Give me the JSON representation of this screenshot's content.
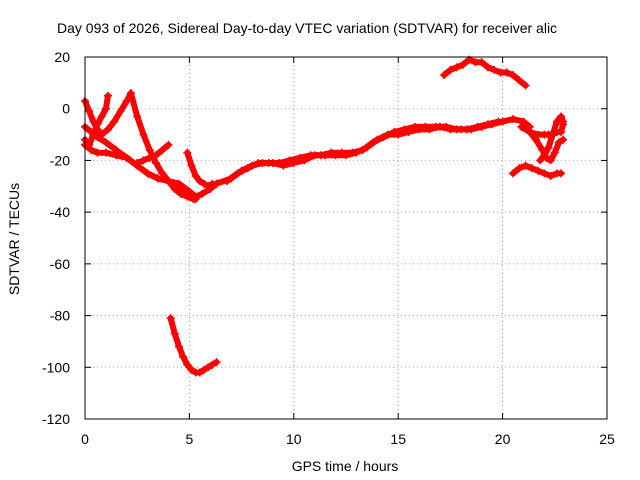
{
  "chart_data": {
    "type": "scatter",
    "title": "Day 093 of 2026, Sidereal Day-to-day VTEC variation (SDTVAR) for receiver alic",
    "xlabel": "GPS time / hours",
    "ylabel": "SDTVAR / TECUs",
    "xlim": [
      0,
      25
    ],
    "ylim": [
      -120,
      20
    ],
    "x_ticks": [
      0,
      5,
      10,
      15,
      20,
      25
    ],
    "y_ticks": [
      -120,
      -100,
      -80,
      -60,
      -40,
      -20,
      0,
      20
    ],
    "x_tick_labels": [
      "0",
      "5",
      "10",
      "15",
      "20",
      "25"
    ],
    "y_tick_labels": [
      "-120",
      "-100",
      "-80",
      "-60",
      "-40",
      "-20",
      "0",
      "20"
    ],
    "grid": true,
    "marker": "plus",
    "color": "#ff0000",
    "series": [
      {
        "x": [
          0.0,
          0.3,
          0.6,
          1.0,
          1.5,
          2.0,
          2.5,
          3.0,
          3.5,
          4.0,
          4.5,
          5.0,
          5.3,
          5.6,
          6.0,
          6.3
        ],
        "y": [
          -14,
          -16,
          -17,
          -17,
          -18,
          -19,
          -22,
          -25,
          -27,
          -28,
          -29,
          -32,
          -34,
          -33,
          -31,
          -29
        ]
      },
      {
        "x": [
          0.0,
          0.3,
          0.6,
          1.0,
          1.5,
          2.0,
          2.5,
          3.0,
          3.5,
          4.0,
          4.5,
          5.0,
          5.3
        ],
        "y": [
          -7,
          -9,
          -11,
          -13,
          -16,
          -19,
          -22,
          -25,
          -27,
          -28,
          -30,
          -33,
          -35
        ]
      },
      {
        "x": [
          0.0,
          0.2,
          0.4,
          0.6,
          0.8,
          1.0,
          1.1
        ],
        "y": [
          -12,
          -14,
          -10,
          -6,
          -3,
          0,
          5
        ]
      },
      {
        "x": [
          0.0,
          0.2,
          0.4,
          0.6,
          0.8,
          1.1,
          1.4,
          1.7,
          2.0,
          2.2
        ],
        "y": [
          3,
          -1,
          -5,
          -8,
          -10,
          -8,
          -5,
          -1,
          3,
          6
        ]
      },
      {
        "x": [
          2.2,
          2.5,
          2.8,
          3.1,
          3.4,
          3.7,
          4.0,
          4.3,
          4.6,
          4.9,
          5.2
        ],
        "y": [
          6,
          -3,
          -10,
          -16,
          -21,
          -25,
          -28,
          -31,
          -33,
          -34,
          -35
        ]
      },
      {
        "x": [
          2.5,
          2.8,
          3.1,
          3.4,
          3.7,
          4.0
        ],
        "y": [
          -21,
          -20,
          -19,
          -18,
          -16,
          -14
        ]
      },
      {
        "x": [
          4.9,
          5.1,
          5.3,
          5.5,
          5.7,
          5.9,
          6.1
        ],
        "y": [
          -17,
          -22,
          -26,
          -28,
          -29,
          -30,
          -29
        ]
      },
      {
        "x": [
          6.3,
          7.0,
          7.5,
          8.0,
          8.5,
          9.0,
          9.5,
          10.0,
          10.5,
          11.0,
          11.5,
          12.0,
          12.5,
          13.0,
          13.5,
          14.0,
          14.5,
          15.0,
          15.5,
          16.0,
          16.5,
          17.0,
          17.5,
          18.0,
          18.5,
          19.0,
          19.5,
          20.0,
          20.5,
          21.0,
          21.3
        ],
        "y": [
          -29,
          -27,
          -24,
          -22,
          -21,
          -21,
          -22,
          -21,
          -20,
          -18,
          -18,
          -18,
          -18,
          -17,
          -15,
          -12,
          -10,
          -10,
          -9,
          -8,
          -8,
          -7,
          -8,
          -8,
          -8,
          -7,
          -6,
          -5,
          -4,
          -5,
          -7
        ]
      },
      {
        "x": [
          6.8,
          7.3,
          7.8,
          8.3,
          8.8,
          9.3,
          9.8,
          10.3,
          10.8,
          11.3,
          11.8,
          12.3,
          12.8,
          13.3,
          13.8,
          14.3,
          14.8,
          15.3,
          15.8,
          16.3,
          16.8,
          17.3,
          17.8,
          18.3,
          18.8,
          19.3,
          19.8
        ],
        "y": [
          -28,
          -25,
          -23,
          -21,
          -21,
          -21,
          -20,
          -19,
          -18,
          -18,
          -17,
          -17,
          -17,
          -16,
          -13,
          -11,
          -9,
          -8,
          -7,
          -7,
          -7,
          -7,
          -8,
          -8,
          -7,
          -6,
          -5
        ]
      },
      {
        "x": [
          17.2,
          17.5,
          17.8,
          18.1,
          18.4,
          18.7,
          19.0,
          19.3,
          19.6,
          19.9,
          20.2,
          20.5,
          20.8,
          21.1
        ],
        "y": [
          13,
          15,
          16,
          17,
          19,
          18,
          18,
          16,
          15,
          14,
          14,
          13,
          11,
          9
        ]
      },
      {
        "x": [
          20.5,
          20.8,
          21.1,
          21.4,
          21.7,
          22.0,
          22.3,
          22.6,
          22.8
        ],
        "y": [
          -25,
          -23,
          -22,
          -23,
          -24,
          -25,
          -26,
          -25,
          -25
        ]
      },
      {
        "x": [
          20.9,
          21.3,
          21.7,
          22.0,
          22.2,
          22.4,
          22.6,
          22.8,
          22.9
        ],
        "y": [
          -7,
          -9,
          -10,
          -10,
          -10,
          -10,
          -9,
          -9,
          -6
        ]
      },
      {
        "x": [
          21.3,
          21.6,
          21.9,
          22.1,
          22.3,
          22.5,
          22.7,
          22.9
        ],
        "y": [
          -9,
          -12,
          -16,
          -19,
          -20,
          -17,
          -13,
          -12
        ]
      },
      {
        "x": [
          21.8,
          22.0,
          22.2,
          22.4,
          22.6,
          22.8,
          22.9
        ],
        "y": [
          -20,
          -18,
          -15,
          -10,
          -5,
          -3,
          -5
        ]
      },
      {
        "x": [
          4.1,
          4.3,
          4.5,
          4.7,
          4.9,
          5.1,
          5.3,
          5.5,
          5.7,
          5.9,
          6.1,
          6.3
        ],
        "y": [
          -81,
          -87,
          -92,
          -96,
          -99,
          -101,
          -102,
          -102,
          -101,
          -100,
          -99,
          -98
        ]
      }
    ]
  }
}
